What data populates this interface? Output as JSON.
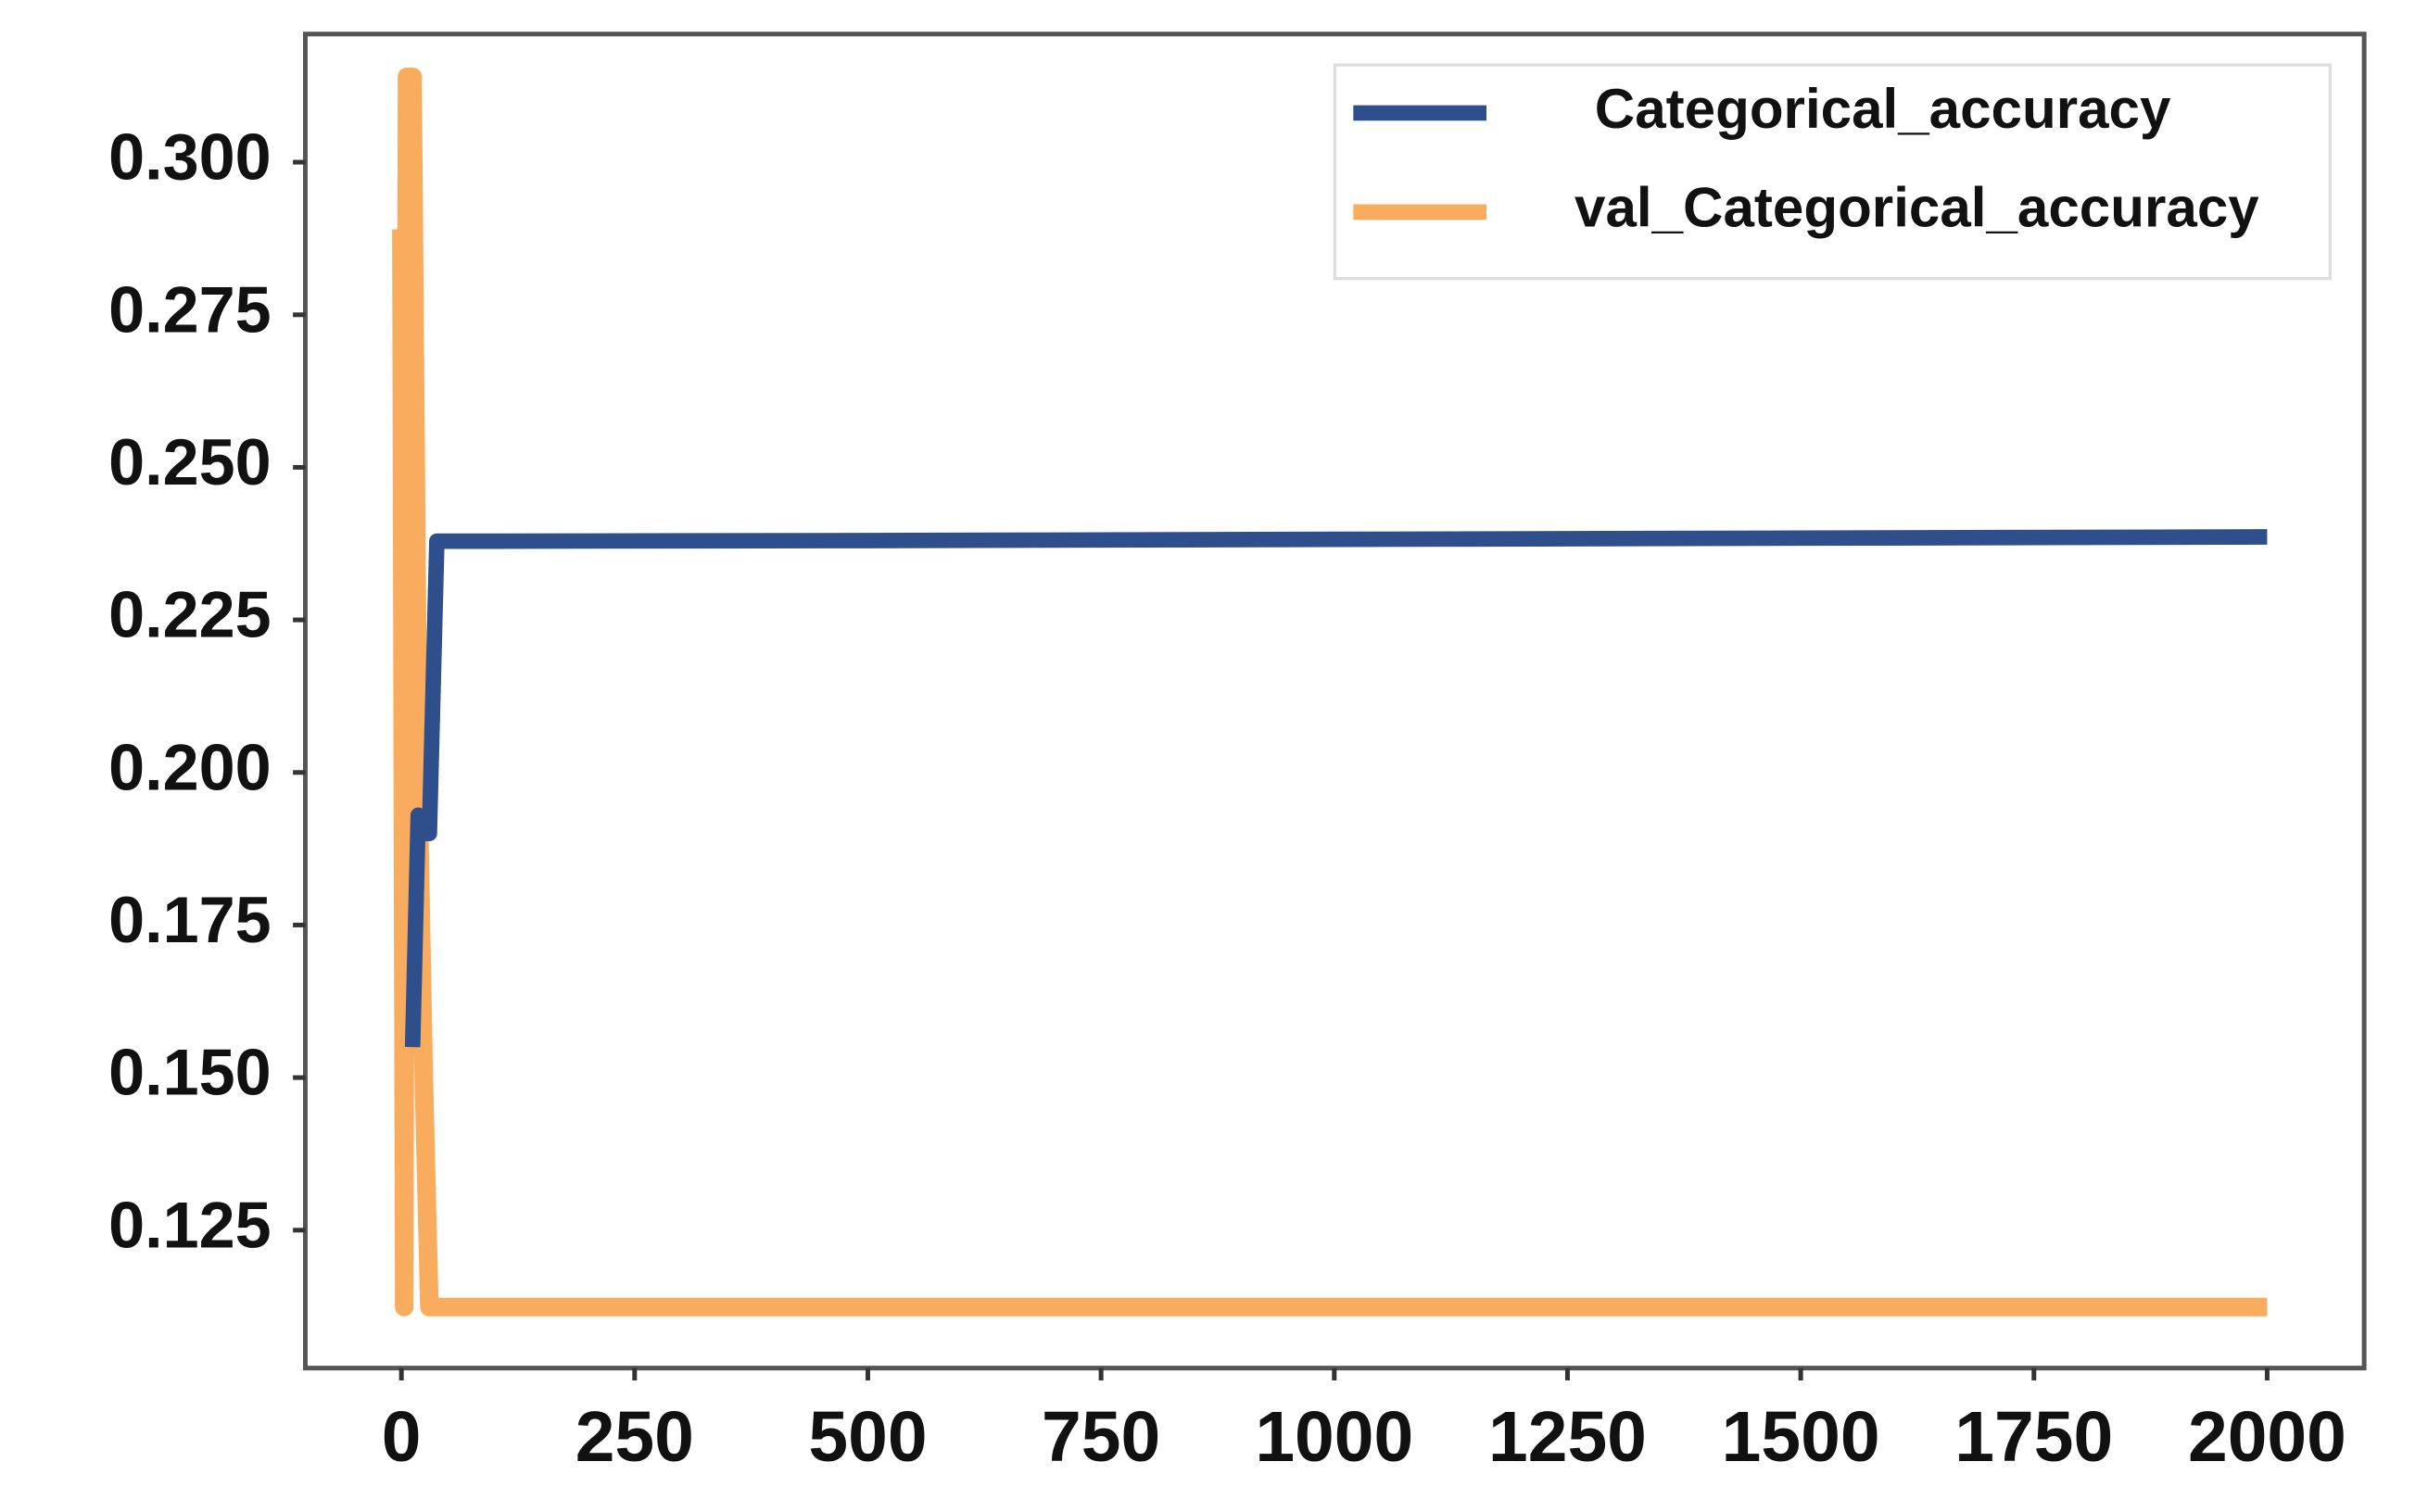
{
  "chart_data": {
    "type": "line",
    "x": [
      0,
      3,
      6,
      12,
      18,
      24,
      30,
      38,
      100,
      500,
      1000,
      1500,
      2000
    ],
    "series": [
      {
        "name": "Categorical_accuracy",
        "color": "#2e4f8c",
        "values": [
          null,
          null,
          null,
          0.155,
          0.193,
          0.19,
          0.19,
          0.2379,
          0.2379,
          0.238,
          0.2382,
          0.2384,
          0.2386
        ]
      },
      {
        "name": "val_Categorical_accuracy",
        "color": "#f9ac5e",
        "values": [
          0.289,
          0.1124,
          0.314,
          0.314,
          0.2,
          0.15,
          0.1124,
          0.1124,
          0.1124,
          0.1124,
          0.1124,
          0.1124,
          0.1124
        ]
      }
    ],
    "xlim": [
      -103,
      2104
    ],
    "xticks": [
      0,
      250,
      500,
      750,
      1000,
      1250,
      1500,
      1750,
      2000
    ],
    "ylim": [
      0.1024,
      0.321
    ],
    "yticks": [
      {
        "value": 0.125,
        "label": "0.125"
      },
      {
        "value": 0.15,
        "label": "0.150"
      },
      {
        "value": 0.175,
        "label": "0.175"
      },
      {
        "value": 0.2,
        "label": "0.200"
      },
      {
        "value": 0.225,
        "label": "0.225"
      },
      {
        "value": 0.25,
        "label": "0.250"
      },
      {
        "value": 0.275,
        "label": "0.275"
      },
      {
        "value": 0.3,
        "label": "0.300"
      }
    ],
    "legend": "upper right"
  }
}
